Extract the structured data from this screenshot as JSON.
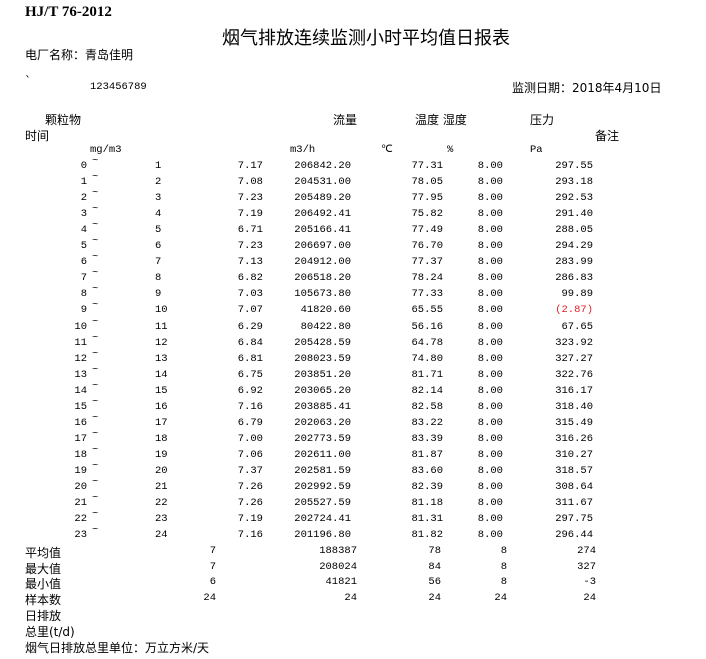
{
  "header": {
    "standard": "HJ/T 76-2012",
    "title": "烟气排放连续监测小时平均值日报表",
    "plant_label": "电厂名称：青岛佳明",
    "mark": "`",
    "code": "123456789",
    "date_label": "监测日期：2018年4月10日"
  },
  "columns": {
    "particulate": "颗粒物",
    "flow": "流量",
    "temp_humidity": "温度 湿度",
    "pressure": "压力",
    "time": "时间",
    "remark": "备注",
    "unit_particulate": "mg/m3",
    "unit_flow": "m3/h",
    "unit_temp": "℃",
    "unit_humidity": "%",
    "unit_pressure": "Pa"
  },
  "rows": [
    {
      "start": "0",
      "end": "1",
      "dust": "7.17",
      "flow": "206842.20",
      "temp": "77.31",
      "hum": "8.00",
      "pres": "297.55"
    },
    {
      "start": "1",
      "end": "2",
      "dust": "7.08",
      "flow": "204531.00",
      "temp": "78.05",
      "hum": "8.00",
      "pres": "293.18"
    },
    {
      "start": "2",
      "end": "3",
      "dust": "7.23",
      "flow": "205489.20",
      "temp": "77.95",
      "hum": "8.00",
      "pres": "292.53"
    },
    {
      "start": "3",
      "end": "4",
      "dust": "7.19",
      "flow": "206492.41",
      "temp": "75.82",
      "hum": "8.00",
      "pres": "291.40"
    },
    {
      "start": "4",
      "end": "5",
      "dust": "6.71",
      "flow": "205166.41",
      "temp": "77.49",
      "hum": "8.00",
      "pres": "288.05"
    },
    {
      "start": "5",
      "end": "6",
      "dust": "7.23",
      "flow": "206697.00",
      "temp": "76.70",
      "hum": "8.00",
      "pres": "294.29"
    },
    {
      "start": "6",
      "end": "7",
      "dust": "7.13",
      "flow": "204912.00",
      "temp": "77.37",
      "hum": "8.00",
      "pres": "283.99"
    },
    {
      "start": "7",
      "end": "8",
      "dust": "6.82",
      "flow": "206518.20",
      "temp": "78.24",
      "hum": "8.00",
      "pres": "286.83"
    },
    {
      "start": "8",
      "end": "9",
      "dust": "7.03",
      "flow": "105673.80",
      "temp": "77.33",
      "hum": "8.00",
      "pres": "99.89"
    },
    {
      "start": "9",
      "end": "10",
      "dust": "7.07",
      "flow": "41820.60",
      "temp": "65.55",
      "hum": "8.00",
      "pres": "(2.87)",
      "negative": true
    },
    {
      "start": "10",
      "end": "11",
      "dust": "6.29",
      "flow": "80422.80",
      "temp": "56.16",
      "hum": "8.00",
      "pres": "67.65"
    },
    {
      "start": "11",
      "end": "12",
      "dust": "6.84",
      "flow": "205428.59",
      "temp": "64.78",
      "hum": "8.00",
      "pres": "323.92"
    },
    {
      "start": "12",
      "end": "13",
      "dust": "6.81",
      "flow": "208023.59",
      "temp": "74.80",
      "hum": "8.00",
      "pres": "327.27"
    },
    {
      "start": "13",
      "end": "14",
      "dust": "6.75",
      "flow": "203851.20",
      "temp": "81.71",
      "hum": "8.00",
      "pres": "322.76"
    },
    {
      "start": "14",
      "end": "15",
      "dust": "6.92",
      "flow": "203065.20",
      "temp": "82.14",
      "hum": "8.00",
      "pres": "316.17"
    },
    {
      "start": "15",
      "end": "16",
      "dust": "7.16",
      "flow": "203885.41",
      "temp": "82.58",
      "hum": "8.00",
      "pres": "318.40"
    },
    {
      "start": "16",
      "end": "17",
      "dust": "6.79",
      "flow": "202063.20",
      "temp": "83.22",
      "hum": "8.00",
      "pres": "315.49"
    },
    {
      "start": "17",
      "end": "18",
      "dust": "7.00",
      "flow": "202773.59",
      "temp": "83.39",
      "hum": "8.00",
      "pres": "316.26"
    },
    {
      "start": "18",
      "end": "19",
      "dust": "7.06",
      "flow": "202611.00",
      "temp": "81.87",
      "hum": "8.00",
      "pres": "310.27"
    },
    {
      "start": "19",
      "end": "20",
      "dust": "7.37",
      "flow": "202581.59",
      "temp": "83.60",
      "hum": "8.00",
      "pres": "318.57"
    },
    {
      "start": "20",
      "end": "21",
      "dust": "7.26",
      "flow": "202992.59",
      "temp": "82.39",
      "hum": "8.00",
      "pres": "308.64"
    },
    {
      "start": "21",
      "end": "22",
      "dust": "7.26",
      "flow": "205527.59",
      "temp": "81.18",
      "hum": "8.00",
      "pres": "311.67"
    },
    {
      "start": "22",
      "end": "23",
      "dust": "7.19",
      "flow": "202724.41",
      "temp": "81.31",
      "hum": "8.00",
      "pres": "297.75"
    },
    {
      "start": "23",
      "end": "24",
      "dust": "7.16",
      "flow": "201196.80",
      "temp": "81.82",
      "hum": "8.00",
      "pres": "296.44"
    }
  ],
  "tilde": "~",
  "negative_color": "#e0202a",
  "summary": [
    {
      "label": "平均值",
      "dust": "7",
      "flow": "188387",
      "temp": "78",
      "hum": "8",
      "pres": "274"
    },
    {
      "label": "最大值",
      "dust": "7",
      "flow": "208024",
      "temp": "84",
      "hum": "8",
      "pres": "327"
    },
    {
      "label": "最小值",
      "dust": "6",
      "flow": "41821",
      "temp": "56",
      "hum": "8",
      "pres": "-3"
    },
    {
      "label": "样本数",
      "dust": "24",
      "flow": "24",
      "temp": "24",
      "hum": "24",
      "pres": "24"
    }
  ],
  "footer": {
    "daily_emission": "日排放",
    "total": "总里(t/d)",
    "unit_note": "烟气日排放总里单位：万立方米/天"
  }
}
